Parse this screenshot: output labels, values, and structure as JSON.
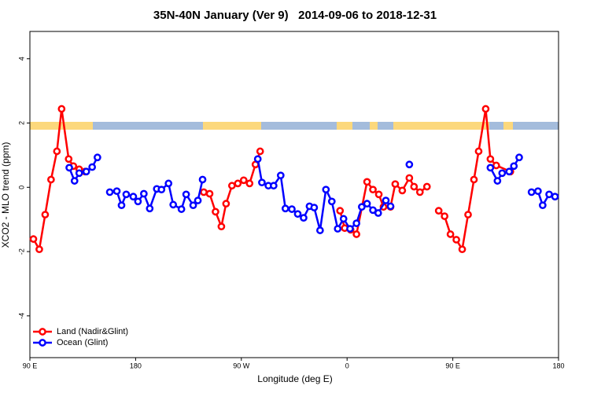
{
  "chart_data": {
    "type": "line",
    "title": "35N-40N January (Ver 9)   2014-09-06 to 2018-12-31",
    "x_label": "Longitude (deg E)",
    "y_label": "XCO2 - MLO trend (ppm)",
    "xlim": [
      90,
      540
    ],
    "xticks": [
      {
        "value": 90,
        "label": "90 E"
      },
      180,
      {
        "value": 270,
        "label": "90 W"
      },
      {
        "value": 360,
        "label": "0"
      },
      {
        "value": 450,
        "label": "90 E"
      },
      {
        "value": 540,
        "label": "180"
      }
    ],
    "ylim": [
      -5.3,
      4.85
    ],
    "yticks": [
      -4,
      -2,
      0,
      2,
      4
    ],
    "legend": "bottom-left",
    "series": [
      {
        "name": "Land (Nadir&Glint)",
        "color": "#ff0000",
        "x": [
          93,
          98,
          103,
          108,
          113,
          117,
          123,
          127,
          132,
          137,
          null,
          238,
          243,
          248,
          253,
          257,
          262,
          267,
          272,
          277,
          282,
          286,
          null,
          354,
          358,
          363,
          368,
          377,
          382,
          387,
          391,
          397,
          401,
          407,
          413,
          417,
          422,
          428,
          null,
          438,
          443,
          448,
          453,
          458,
          463,
          468,
          472,
          478,
          482,
          487,
          499
        ],
        "values": [
          -1.61,
          -1.93,
          -0.85,
          0.24,
          1.12,
          2.44,
          0.88,
          0.66,
          0.56,
          0.49,
          null,
          -0.15,
          -0.2,
          -0.76,
          -1.22,
          -0.51,
          0.05,
          0.12,
          0.22,
          0.12,
          0.71,
          1.12,
          null,
          -0.73,
          -1.27,
          -1.32,
          -1.46,
          0.17,
          -0.07,
          -0.22,
          -0.61,
          -0.61,
          0.1,
          -0.1,
          0.29,
          0.02,
          -0.15,
          0.02,
          null,
          -0.73,
          -0.9,
          -1.46,
          -1.63,
          -1.93,
          -0.85,
          0.24,
          1.12,
          2.44,
          0.88,
          0.68,
          0.49
        ]
      },
      {
        "name": "Ocean (Glint)",
        "color": "#0000ff",
        "x": [
          123.5,
          128,
          132,
          138,
          143,
          147.5,
          null,
          158,
          164,
          168,
          172,
          178,
          182,
          187,
          192,
          198,
          202,
          208,
          212,
          219,
          223,
          229,
          233,
          237,
          null,
          284,
          287.5,
          293,
          297.5,
          303.5,
          307.5,
          313,
          318,
          323,
          328,
          332,
          337,
          342,
          347,
          352,
          357,
          362.5,
          368,
          372.5,
          377,
          382,
          386.5,
          393,
          397,
          null,
          413,
          null,
          482,
          488,
          492,
          498,
          502,
          506.5,
          null,
          517,
          522.5,
          526.5,
          532,
          537
        ],
        "values": [
          0.61,
          0.2,
          0.44,
          0.49,
          0.63,
          0.93,
          null,
          -0.15,
          -0.12,
          -0.56,
          -0.22,
          -0.29,
          -0.44,
          -0.2,
          -0.66,
          -0.05,
          -0.07,
          0.12,
          -0.54,
          -0.68,
          -0.22,
          -0.56,
          -0.41,
          0.24,
          null,
          0.88,
          0.15,
          0.05,
          0.05,
          0.37,
          -0.66,
          -0.68,
          -0.83,
          -0.95,
          -0.59,
          -0.63,
          -1.34,
          -0.07,
          -0.44,
          -1.29,
          -0.98,
          -1.29,
          -1.12,
          -0.61,
          -0.51,
          -0.71,
          -0.8,
          -0.41,
          -0.59,
          null,
          0.71,
          null,
          0.61,
          0.2,
          0.44,
          0.49,
          0.66,
          0.93,
          null,
          -0.15,
          -0.12,
          -0.56,
          -0.22,
          -0.29
        ]
      }
    ]
  }
}
